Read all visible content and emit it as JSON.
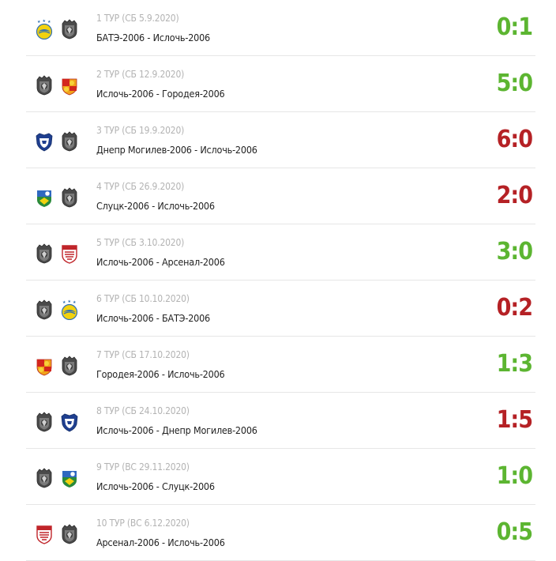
{
  "colors": {
    "win": "#5cb531",
    "loss": "#b52125"
  },
  "matches": [
    {
      "tour": "1 ТУР (СБ 5.9.2020)",
      "teams": "БАТЭ-2006 - Ислочь-2006",
      "score": "0:1",
      "result": "win",
      "home_logo": "bate-logo-icon",
      "away_logo": "isloch-logo-icon"
    },
    {
      "tour": "2 ТУР (СБ 12.9.2020)",
      "teams": "Ислочь-2006 - Городея-2006",
      "score": "5:0",
      "result": "win",
      "home_logo": "isloch-logo-icon",
      "away_logo": "gorodeya-logo-icon"
    },
    {
      "tour": "3 ТУР (СБ 19.9.2020)",
      "teams": "Днепр Могилев-2006 - Ислочь-2006",
      "score": "6:0",
      "result": "loss",
      "home_logo": "dnepr-logo-icon",
      "away_logo": "isloch-logo-icon"
    },
    {
      "tour": "4 ТУР (СБ 26.9.2020)",
      "teams": "Слуцк-2006 - Ислочь-2006",
      "score": "2:0",
      "result": "loss",
      "home_logo": "slutsk-logo-icon",
      "away_logo": "isloch-logo-icon"
    },
    {
      "tour": "5 ТУР (СБ 3.10.2020)",
      "teams": "Ислочь-2006 - Арсенал-2006",
      "score": "3:0",
      "result": "win",
      "home_logo": "isloch-logo-icon",
      "away_logo": "arsenal-logo-icon"
    },
    {
      "tour": "6 ТУР (СБ 10.10.2020)",
      "teams": "Ислочь-2006 - БАТЭ-2006",
      "score": "0:2",
      "result": "loss",
      "home_logo": "isloch-logo-icon",
      "away_logo": "bate-logo-icon"
    },
    {
      "tour": "7 ТУР (СБ 17.10.2020)",
      "teams": "Городея-2006 - Ислочь-2006",
      "score": "1:3",
      "result": "win",
      "home_logo": "gorodeya-logo-icon",
      "away_logo": "isloch-logo-icon"
    },
    {
      "tour": "8 ТУР (СБ 24.10.2020)",
      "teams": "Ислочь-2006 - Днепр Могилев-2006",
      "score": "1:5",
      "result": "loss",
      "home_logo": "isloch-logo-icon",
      "away_logo": "dnepr-logo-icon"
    },
    {
      "tour": "9 ТУР (ВС 29.11.2020)",
      "teams": "Ислочь-2006 - Слуцк-2006",
      "score": "1:0",
      "result": "win",
      "home_logo": "isloch-logo-icon",
      "away_logo": "slutsk-logo-icon"
    },
    {
      "tour": "10 ТУР (ВС 6.12.2020)",
      "teams": "Арсенал-2006 - Ислочь-2006",
      "score": "0:5",
      "result": "win",
      "home_logo": "arsenal-logo-icon",
      "away_logo": "isloch-logo-icon"
    }
  ]
}
